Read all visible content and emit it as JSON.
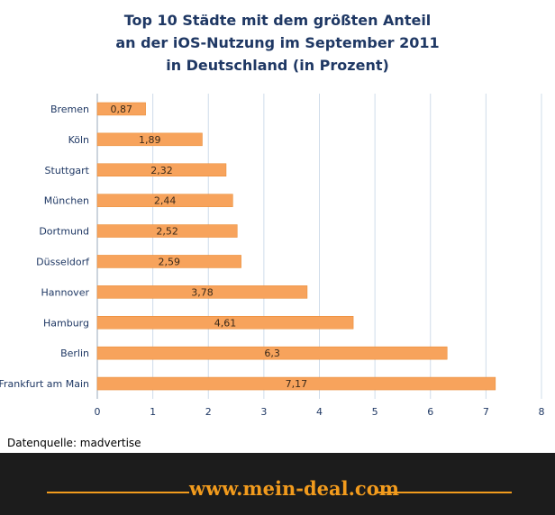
{
  "title": {
    "line1": "Top 10 Städte mit dem größten Anteil",
    "line2": "an der iOS-Nutzung  im September 2011",
    "line3": "in Deutschland  (in Prozent)"
  },
  "source_label": "Datenquelle: madvertise",
  "footer": {
    "brand": "www.mein-deal.com"
  },
  "colors": {
    "bar": "#f7a35c",
    "bar_edge": "#e8862a",
    "title": "#1f3864",
    "footer_bg": "#1c1c1c",
    "footer_accent": "#f29b1d"
  },
  "chart_data": {
    "type": "bar",
    "orientation": "horizontal",
    "categories": [
      "Bremen",
      "Köln",
      "Stuttgart",
      "München",
      "Dortmund",
      "Düsseldorf",
      "Hannover",
      "Hamburg",
      "Berlin",
      "Frankfurt am Main"
    ],
    "values": [
      0.87,
      1.89,
      2.32,
      2.44,
      2.52,
      2.59,
      3.78,
      4.61,
      6.3,
      7.17
    ],
    "data_labels": [
      "0,87",
      "1,89",
      "2,32",
      "2,44",
      "2,52",
      "2,59",
      "3,78",
      "4,61",
      "6,3",
      "7,17"
    ],
    "xlim": [
      0,
      8
    ],
    "xticks": [
      0,
      1,
      2,
      3,
      4,
      5,
      6,
      7,
      8
    ],
    "grid": true
  }
}
